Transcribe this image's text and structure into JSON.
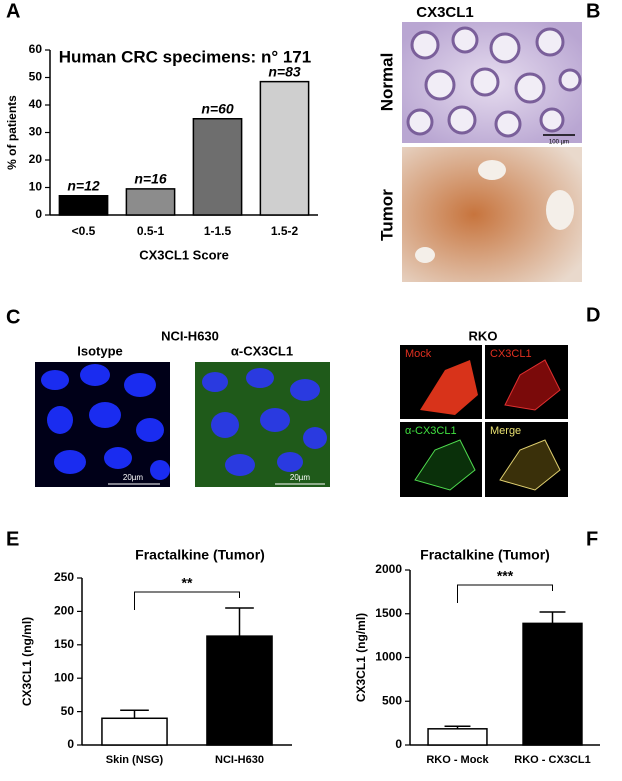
{
  "chart_data": [
    {
      "type": "bar",
      "panel": "A",
      "title": "Human CRC specimens: n° 171",
      "ylabel": "% of patients",
      "xlabel": "CX3CL1 Score",
      "categories": [
        "<0.5",
        "0.5-1",
        "1-1.5",
        "1.5-2"
      ],
      "values": [
        7,
        9.5,
        35,
        48.5
      ],
      "colors": [
        "#000000",
        "#8c8c8c",
        "#6e6e6e",
        "#cfcfcf"
      ],
      "annotations": [
        "n=12",
        "n=16",
        "n=60",
        "n=83"
      ],
      "ylim": [
        0,
        60
      ],
      "yticks": [
        0,
        10,
        20,
        30,
        40,
        50,
        60
      ]
    },
    {
      "type": "bar",
      "panel": "E",
      "title": "Fractalkine (Tumor)",
      "ylabel": "CX3CL1 (ng/ml)",
      "categories": [
        "Skin (NSG)",
        "NCI-H630"
      ],
      "values": [
        40,
        163
      ],
      "errors": [
        12,
        42
      ],
      "colors": [
        "#ffffff",
        "#000000"
      ],
      "significance": "**",
      "ylim": [
        0,
        250
      ],
      "yticks": [
        0,
        50,
        100,
        150,
        200,
        250
      ]
    },
    {
      "type": "bar",
      "panel": "F",
      "title": "Fractalkine (Tumor)",
      "ylabel": "CX3CL1 (ng/ml)",
      "categories": [
        "RKO - Mock",
        "RKO - CX3CL1"
      ],
      "values": [
        185,
        1390
      ],
      "errors": [
        30,
        130
      ],
      "colors": [
        "#ffffff",
        "#000000"
      ],
      "significance": "***",
      "ylim": [
        0,
        2000
      ],
      "yticks": [
        0,
        500,
        1000,
        1500,
        2000
      ]
    }
  ],
  "panels": {
    "B": {
      "letter": "B",
      "title": "CX3CL1",
      "rows": [
        "Normal",
        "Tumor"
      ],
      "scale": "100 µm"
    },
    "C": {
      "letter": "C",
      "title": "NCI-H630",
      "columns": [
        "Isotype",
        "α-CX3CL1"
      ],
      "scales": [
        "20µm",
        "20µm"
      ]
    },
    "D": {
      "letter": "D",
      "title": "RKO",
      "tiles": [
        "Mock",
        "CX3CL1",
        "α-CX3CL1",
        "Merge"
      ]
    }
  }
}
